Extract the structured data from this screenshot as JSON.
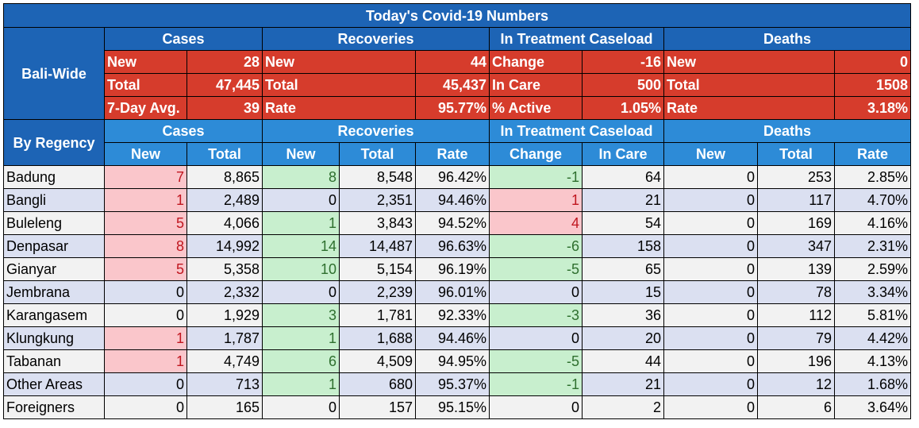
{
  "title": "Today's Covid-19 Numbers",
  "bali_wide": {
    "label": "Bali-Wide",
    "groups": [
      "Cases",
      "Recoveries",
      "In Treatment Caseload",
      "Deaths"
    ],
    "rows": [
      [
        [
          "New",
          "28"
        ],
        [
          "New",
          "44"
        ],
        [
          "Change",
          "-16"
        ],
        [
          "New",
          "0"
        ]
      ],
      [
        [
          "Total",
          "47,445"
        ],
        [
          "Total",
          "45,437"
        ],
        [
          "In Care",
          "500"
        ],
        [
          "Total",
          "1508"
        ]
      ],
      [
        [
          "7-Day Avg.",
          "39"
        ],
        [
          "Rate",
          "95.77%"
        ],
        [
          "% Active",
          "1.05%"
        ],
        [
          "Rate",
          "3.18%"
        ]
      ]
    ]
  },
  "by_regency": {
    "label": "By Regency",
    "groups": [
      "Cases",
      "Recoveries",
      "In Treatment Caseload",
      "Deaths"
    ],
    "columns": [
      "New",
      "Total",
      "New",
      "Total",
      "Rate",
      "Change",
      "In Care",
      "New",
      "Total",
      "Rate"
    ],
    "rows": [
      {
        "name": "Badung",
        "values": [
          "7",
          "8,865",
          "8",
          "8,548",
          "96.42%",
          "-1",
          "64",
          "0",
          "253",
          "2.85%"
        ]
      },
      {
        "name": "Bangli",
        "values": [
          "1",
          "2,489",
          "0",
          "2,351",
          "94.46%",
          "1",
          "21",
          "0",
          "117",
          "4.70%"
        ]
      },
      {
        "name": "Buleleng",
        "values": [
          "5",
          "4,066",
          "1",
          "3,843",
          "94.52%",
          "4",
          "54",
          "0",
          "169",
          "4.16%"
        ]
      },
      {
        "name": "Denpasar",
        "values": [
          "8",
          "14,992",
          "14",
          "14,487",
          "96.63%",
          "-6",
          "158",
          "0",
          "347",
          "2.31%"
        ]
      },
      {
        "name": "Gianyar",
        "values": [
          "5",
          "5,358",
          "10",
          "5,154",
          "96.19%",
          "-5",
          "65",
          "0",
          "139",
          "2.59%"
        ]
      },
      {
        "name": "Jembrana",
        "values": [
          "0",
          "2,332",
          "0",
          "2,239",
          "96.01%",
          "0",
          "15",
          "0",
          "78",
          "3.34%"
        ]
      },
      {
        "name": "Karangasem",
        "values": [
          "0",
          "1,929",
          "3",
          "1,781",
          "92.33%",
          "-3",
          "36",
          "0",
          "112",
          "5.81%"
        ]
      },
      {
        "name": "Klungkung",
        "values": [
          "1",
          "1,787",
          "1",
          "1,688",
          "94.46%",
          "0",
          "20",
          "0",
          "79",
          "4.42%"
        ]
      },
      {
        "name": "Tabanan",
        "values": [
          "1",
          "4,749",
          "6",
          "4,509",
          "94.95%",
          "-5",
          "44",
          "0",
          "196",
          "4.13%"
        ]
      },
      {
        "name": "Other Areas",
        "values": [
          "0",
          "713",
          "1",
          "680",
          "95.37%",
          "-1",
          "21",
          "0",
          "12",
          "1.68%"
        ]
      },
      {
        "name": "Foreigners",
        "values": [
          "0",
          "165",
          "0",
          "157",
          "95.15%",
          "0",
          "2",
          "0",
          "6",
          "3.64%"
        ]
      }
    ]
  },
  "colors": {
    "header_blue": "#1d64b5",
    "subheader_blue": "#2d8bd7",
    "summary_red": "#d63c2c",
    "increase_pink": "#fac6cb",
    "decrease_green": "#c8efce",
    "row_stripe": "#dbe0f1"
  }
}
